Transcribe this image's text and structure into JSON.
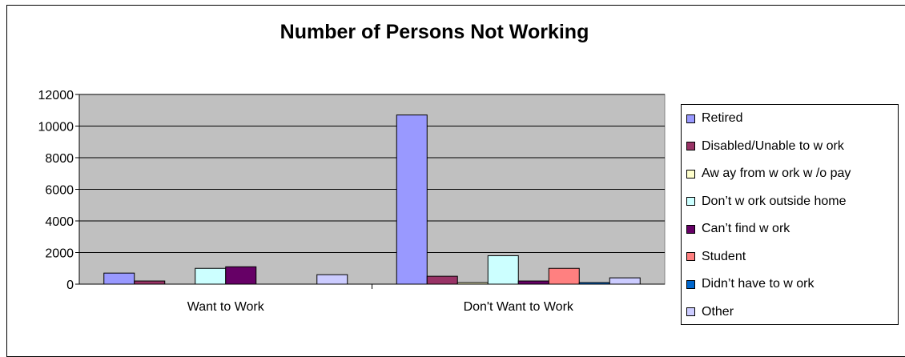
{
  "chart_data": {
    "type": "bar",
    "title": "Number of Persons Not Working",
    "categories": [
      "Want to Work",
      "Don't Want to Work"
    ],
    "ylim": [
      0,
      12000
    ],
    "yticks": [
      0,
      2000,
      4000,
      6000,
      8000,
      10000,
      12000
    ],
    "grid": true,
    "legend_position": "right",
    "series": [
      {
        "name": "Retired",
        "color": "#9999ff",
        "values": [
          700,
          10700
        ]
      },
      {
        "name": "Disabled/Unable to w ork",
        "color": "#993366",
        "values": [
          200,
          500
        ]
      },
      {
        "name": "Aw ay from w ork w /o pay",
        "color": "#ffffcc",
        "values": [
          0,
          100
        ]
      },
      {
        "name": "Don’t w ork outside home",
        "color": "#ccffff",
        "values": [
          1000,
          1800
        ]
      },
      {
        "name": "Can’t find w ork",
        "color": "#660066",
        "values": [
          1100,
          200
        ]
      },
      {
        "name": "Student",
        "color": "#ff8080",
        "values": [
          0,
          1000
        ]
      },
      {
        "name": "Didn’t have to w ork",
        "color": "#0066cc",
        "values": [
          0,
          100
        ]
      },
      {
        "name": "Other",
        "color": "#ccccff",
        "values": [
          600,
          400
        ]
      }
    ],
    "plot_background": "#c0c0c0"
  }
}
